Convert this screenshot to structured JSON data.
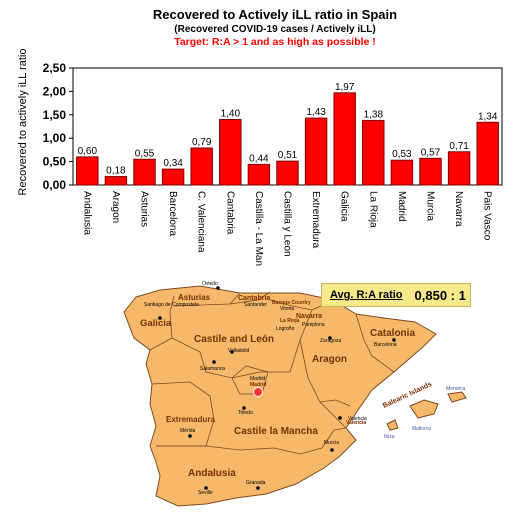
{
  "title": "Recovered to Actively iLL ratio in Spain",
  "subtitle": "(Recovered COVID-19 cases / Actively iLL)",
  "target_note": "Target: R:A > 1 and as high as possible !",
  "colors": {
    "bar": "#ff0000",
    "bar_stroke": "#800000",
    "map_fill": "#f6b96b",
    "map_stroke": "#7a4a20",
    "note": "#ff0000",
    "avg_box": "#f5e98a"
  },
  "avg": {
    "label": "Avg. R:A ratio",
    "value": "0,850 : 1"
  },
  "chart_data": {
    "type": "bar",
    "title": "Recovered to Actively iLL ratio in Spain",
    "subtitle": "(Recovered COVID-19 cases / Actively iLL)",
    "ylabel": "Recovered to actively iLL ratio",
    "xlabel": "",
    "ylim": [
      0,
      2.5
    ],
    "yticks": [
      "0,00",
      "0,50",
      "1,00",
      "1,50",
      "2,00",
      "2,50"
    ],
    "grid": false,
    "categories": [
      "Andalusia",
      "Aragon",
      "Asturias",
      "Barcelona",
      "C. Valenciana",
      "Cantabria",
      "Castilla - La Man",
      "Castilla y Leon",
      "Extremadura",
      "Galicia",
      "La Rioja",
      "Madrid",
      "Murcia",
      "Navarra",
      "Pais Vasco"
    ],
    "values": [
      0.6,
      0.18,
      0.55,
      0.34,
      0.79,
      1.4,
      0.44,
      0.51,
      1.43,
      1.97,
      1.38,
      0.53,
      0.57,
      0.71,
      1.34
    ],
    "labels": [
      "0,60",
      "0,18",
      "0,55",
      "0,34",
      "0,79",
      "1,40",
      "0,44",
      "0,51",
      "1,43",
      "1,97",
      "1,38",
      "0,53",
      "0,57",
      "0,71",
      "1,34"
    ]
  },
  "map": {
    "regions": [
      "Galicia",
      "Asturias",
      "Cantabria",
      "Basque Country",
      "Navarra",
      "Castile and León",
      "La Rioja",
      "Aragon",
      "Catalonia",
      "Extremadura",
      "Madrid",
      "Castile la Mancha",
      "Valencia",
      "Andalusia",
      "Balearic Islands"
    ],
    "cities": [
      "Oviedo",
      "Santiago de Compostela",
      "Santander",
      "Vitoria",
      "Pamplona",
      "Logroño",
      "Salamanca",
      "Valladolid",
      "Zaragoza",
      "Barcelona",
      "Madrid",
      "Toledo",
      "Mérida",
      "Valencia",
      "Murcia",
      "Seville",
      "Granada",
      "Menorca",
      "Mallorca",
      "Ibiza"
    ]
  }
}
